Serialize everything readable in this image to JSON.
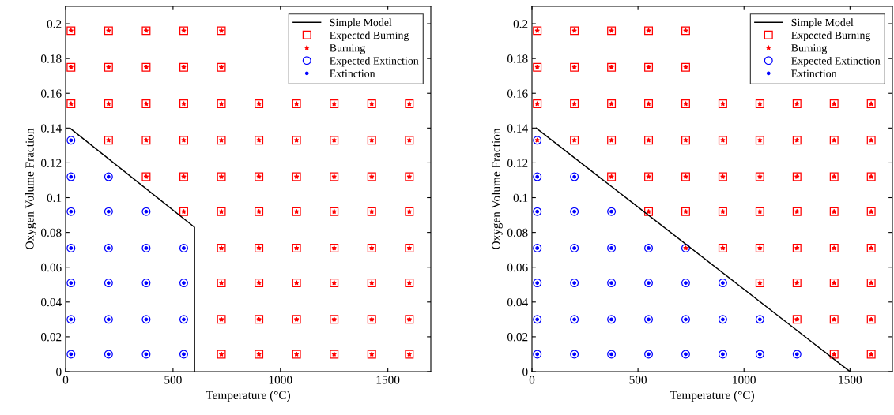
{
  "chart_data": [
    {
      "type": "scatter",
      "xlabel": "Temperature (°C)",
      "ylabel": "Oxygen Volume Fraction",
      "xlim": [
        0,
        1700
      ],
      "ylim": [
        0,
        0.21
      ],
      "xticks": [
        0,
        500,
        1000,
        1500
      ],
      "yticks": [
        0,
        0.02,
        0.04,
        0.06,
        0.08,
        0.1,
        0.12,
        0.14,
        0.16,
        0.18,
        0.2
      ],
      "legend": "top right",
      "grid": false,
      "series": [
        {
          "name": "Simple Model",
          "type": "line",
          "color": "#000000",
          "marker": "none",
          "line_style": "solid",
          "x": [
            20,
            600,
            600
          ],
          "values": [
            0.14,
            0.083,
            0
          ]
        },
        {
          "name": "Expected Burning",
          "color": "#ff0000",
          "marker": "square",
          "x": [
            725,
            900,
            1075,
            1250,
            1425,
            1600,
            725,
            900,
            1075,
            1250,
            1425,
            1600,
            725,
            900,
            1075,
            1250,
            1425,
            1600,
            725,
            900,
            1075,
            1250,
            1425,
            1600,
            550,
            725,
            900,
            1075,
            1250,
            1425,
            1600,
            375,
            550,
            725,
            900,
            1075,
            1250,
            1425,
            1600,
            200,
            375,
            550,
            725,
            900,
            1075,
            1250,
            1425,
            1600,
            25,
            200,
            375,
            550,
            725,
            900,
            1075,
            1250,
            1425,
            1600,
            25,
            200,
            375,
            550,
            725,
            25,
            200,
            375,
            550,
            725
          ],
          "values": [
            0.01,
            0.01,
            0.01,
            0.01,
            0.01,
            0.01,
            0.03,
            0.03,
            0.03,
            0.03,
            0.03,
            0.03,
            0.051,
            0.051,
            0.051,
            0.051,
            0.051,
            0.051,
            0.071,
            0.071,
            0.071,
            0.071,
            0.071,
            0.071,
            0.092,
            0.092,
            0.092,
            0.092,
            0.092,
            0.092,
            0.092,
            0.112,
            0.112,
            0.112,
            0.112,
            0.112,
            0.112,
            0.112,
            0.112,
            0.133,
            0.133,
            0.133,
            0.133,
            0.133,
            0.133,
            0.133,
            0.133,
            0.133,
            0.154,
            0.154,
            0.154,
            0.154,
            0.154,
            0.154,
            0.154,
            0.154,
            0.154,
            0.154,
            0.175,
            0.175,
            0.175,
            0.175,
            0.175,
            0.196,
            0.196,
            0.196,
            0.196,
            0.196
          ]
        },
        {
          "name": "Burning",
          "color": "#ff0000",
          "marker": "star",
          "x": [
            725,
            900,
            1075,
            1250,
            1425,
            1600,
            725,
            900,
            1075,
            1250,
            1425,
            1600,
            725,
            900,
            1075,
            1250,
            1425,
            1600,
            725,
            900,
            1075,
            1250,
            1425,
            1600,
            550,
            725,
            900,
            1075,
            1250,
            1425,
            1600,
            375,
            550,
            725,
            900,
            1075,
            1250,
            1425,
            1600,
            200,
            375,
            550,
            725,
            900,
            1075,
            1250,
            1425,
            1600,
            25,
            200,
            375,
            550,
            725,
            900,
            1075,
            1250,
            1425,
            1600,
            25,
            200,
            375,
            550,
            725,
            25,
            200,
            375,
            550,
            725
          ],
          "values": [
            0.01,
            0.01,
            0.01,
            0.01,
            0.01,
            0.01,
            0.03,
            0.03,
            0.03,
            0.03,
            0.03,
            0.03,
            0.051,
            0.051,
            0.051,
            0.051,
            0.051,
            0.051,
            0.071,
            0.071,
            0.071,
            0.071,
            0.071,
            0.071,
            0.092,
            0.092,
            0.092,
            0.092,
            0.092,
            0.092,
            0.092,
            0.112,
            0.112,
            0.112,
            0.112,
            0.112,
            0.112,
            0.112,
            0.112,
            0.133,
            0.133,
            0.133,
            0.133,
            0.133,
            0.133,
            0.133,
            0.133,
            0.133,
            0.154,
            0.154,
            0.154,
            0.154,
            0.154,
            0.154,
            0.154,
            0.154,
            0.154,
            0.154,
            0.175,
            0.175,
            0.175,
            0.175,
            0.175,
            0.196,
            0.196,
            0.196,
            0.196,
            0.196
          ]
        },
        {
          "name": "Expected Extinction",
          "color": "#0000ff",
          "marker": "circle",
          "x": [
            25,
            200,
            375,
            550,
            25,
            200,
            375,
            550,
            25,
            200,
            375,
            550,
            25,
            200,
            375,
            550,
            25,
            200,
            375,
            25,
            200,
            25
          ],
          "values": [
            0.01,
            0.01,
            0.01,
            0.01,
            0.03,
            0.03,
            0.03,
            0.03,
            0.051,
            0.051,
            0.051,
            0.051,
            0.071,
            0.071,
            0.071,
            0.071,
            0.092,
            0.092,
            0.092,
            0.112,
            0.112,
            0.133
          ]
        },
        {
          "name": "Extinction",
          "color": "#0000ff",
          "marker": "point",
          "x": [
            25,
            200,
            375,
            550,
            25,
            200,
            375,
            550,
            25,
            200,
            375,
            550,
            25,
            200,
            375,
            550,
            25,
            200,
            375,
            25,
            200,
            25
          ],
          "values": [
            0.01,
            0.01,
            0.01,
            0.01,
            0.03,
            0.03,
            0.03,
            0.03,
            0.051,
            0.051,
            0.051,
            0.051,
            0.071,
            0.071,
            0.071,
            0.071,
            0.092,
            0.092,
            0.092,
            0.112,
            0.112,
            0.133
          ]
        }
      ]
    },
    {
      "type": "scatter",
      "xlabel": "Temperature (°C)",
      "ylabel": "Oxygen Volume Fraction",
      "xlim": [
        0,
        1700
      ],
      "ylim": [
        0,
        0.21
      ],
      "xticks": [
        0,
        500,
        1000,
        1500
      ],
      "yticks": [
        0,
        0.02,
        0.04,
        0.06,
        0.08,
        0.1,
        0.12,
        0.14,
        0.16,
        0.18,
        0.2
      ],
      "legend": "top right",
      "grid": false,
      "series": [
        {
          "name": "Simple Model",
          "type": "line",
          "color": "#000000",
          "marker": "none",
          "line_style": "solid",
          "x": [
            20,
            1500
          ],
          "values": [
            0.14,
            0
          ]
        },
        {
          "name": "Expected Burning",
          "color": "#ff0000",
          "marker": "square",
          "x": [
            1425,
            1600,
            1250,
            1425,
            1600,
            1075,
            1250,
            1425,
            1600,
            900,
            1075,
            1250,
            1425,
            1600,
            550,
            725,
            900,
            1075,
            1250,
            1425,
            1600,
            375,
            550,
            725,
            900,
            1075,
            1250,
            1425,
            1600,
            200,
            375,
            550,
            725,
            900,
            1075,
            1250,
            1425,
            1600,
            25,
            200,
            375,
            550,
            725,
            900,
            1075,
            1250,
            1425,
            1600,
            25,
            200,
            375,
            550,
            725,
            25,
            200,
            375,
            550,
            725
          ],
          "values": [
            0.01,
            0.01,
            0.03,
            0.03,
            0.03,
            0.051,
            0.051,
            0.051,
            0.051,
            0.071,
            0.071,
            0.071,
            0.071,
            0.071,
            0.092,
            0.092,
            0.092,
            0.092,
            0.092,
            0.092,
            0.092,
            0.112,
            0.112,
            0.112,
            0.112,
            0.112,
            0.112,
            0.112,
            0.112,
            0.133,
            0.133,
            0.133,
            0.133,
            0.133,
            0.133,
            0.133,
            0.133,
            0.133,
            0.154,
            0.154,
            0.154,
            0.154,
            0.154,
            0.154,
            0.154,
            0.154,
            0.154,
            0.154,
            0.175,
            0.175,
            0.175,
            0.175,
            0.175,
            0.196,
            0.196,
            0.196,
            0.196,
            0.196
          ]
        },
        {
          "name": "Burning",
          "color": "#ff0000",
          "marker": "star",
          "x": [
            1425,
            1600,
            1250,
            1425,
            1600,
            1075,
            1250,
            1425,
            1600,
            725,
            900,
            1075,
            1250,
            1425,
            1600,
            550,
            725,
            900,
            1075,
            1250,
            1425,
            1600,
            375,
            550,
            725,
            900,
            1075,
            1250,
            1425,
            1600,
            25,
            200,
            375,
            550,
            725,
            900,
            1075,
            1250,
            1425,
            1600,
            25,
            200,
            375,
            550,
            725,
            900,
            1075,
            1250,
            1425,
            1600,
            25,
            200,
            375,
            550,
            725,
            25,
            200,
            375,
            550,
            725
          ],
          "values": [
            0.01,
            0.01,
            0.03,
            0.03,
            0.03,
            0.051,
            0.051,
            0.051,
            0.051,
            0.071,
            0.071,
            0.071,
            0.071,
            0.071,
            0.071,
            0.092,
            0.092,
            0.092,
            0.092,
            0.092,
            0.092,
            0.092,
            0.112,
            0.112,
            0.112,
            0.112,
            0.112,
            0.112,
            0.112,
            0.112,
            0.133,
            0.133,
            0.133,
            0.133,
            0.133,
            0.133,
            0.133,
            0.133,
            0.133,
            0.133,
            0.154,
            0.154,
            0.154,
            0.154,
            0.154,
            0.154,
            0.154,
            0.154,
            0.154,
            0.154,
            0.175,
            0.175,
            0.175,
            0.175,
            0.175,
            0.196,
            0.196,
            0.196,
            0.196,
            0.196
          ]
        },
        {
          "name": "Expected Extinction",
          "color": "#0000ff",
          "marker": "circle",
          "x": [
            25,
            200,
            375,
            550,
            725,
            900,
            1075,
            1250,
            25,
            200,
            375,
            550,
            725,
            900,
            1075,
            25,
            200,
            375,
            550,
            725,
            900,
            25,
            200,
            375,
            550,
            725,
            25,
            200,
            375,
            25,
            200,
            25
          ],
          "values": [
            0.01,
            0.01,
            0.01,
            0.01,
            0.01,
            0.01,
            0.01,
            0.01,
            0.03,
            0.03,
            0.03,
            0.03,
            0.03,
            0.03,
            0.03,
            0.051,
            0.051,
            0.051,
            0.051,
            0.051,
            0.051,
            0.071,
            0.071,
            0.071,
            0.071,
            0.071,
            0.092,
            0.092,
            0.092,
            0.112,
            0.112,
            0.133
          ]
        },
        {
          "name": "Extinction",
          "color": "#0000ff",
          "marker": "point",
          "x": [
            25,
            200,
            375,
            550,
            725,
            900,
            1075,
            1250,
            25,
            200,
            375,
            550,
            725,
            900,
            1075,
            25,
            200,
            375,
            550,
            725,
            900,
            25,
            200,
            375,
            550,
            25,
            200,
            375,
            25,
            200
          ],
          "values": [
            0.01,
            0.01,
            0.01,
            0.01,
            0.01,
            0.01,
            0.01,
            0.01,
            0.03,
            0.03,
            0.03,
            0.03,
            0.03,
            0.03,
            0.03,
            0.051,
            0.051,
            0.051,
            0.051,
            0.051,
            0.051,
            0.071,
            0.071,
            0.071,
            0.071,
            0.092,
            0.092,
            0.092,
            0.112,
            0.112
          ]
        }
      ]
    }
  ]
}
